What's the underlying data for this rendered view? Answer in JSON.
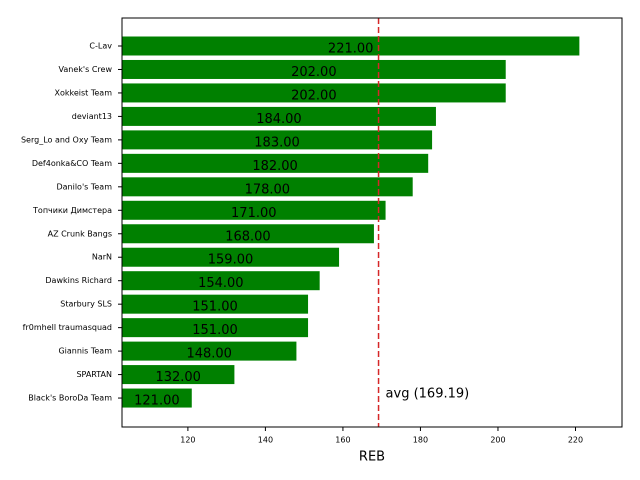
{
  "chart_data": {
    "type": "barh",
    "xlabel": "REB",
    "categories": [
      "C-Lav",
      "Vanek's Crew",
      "Xokkeist Team",
      "deviant13",
      "Serg_Lo and Oxy Team",
      "Def4onka&CO Team",
      "Danilo's Team",
      "Топчики Димстера",
      "AZ Crunk Bangs",
      "NarN",
      "Dawkins Richard",
      "Starbury SLS",
      "fr0mhell traumasquad",
      "Giannis Team",
      "SPARTAN",
      "Black's BoroDa Team"
    ],
    "values": [
      221,
      202,
      202,
      184,
      183,
      182,
      178,
      171,
      168,
      159,
      154,
      151,
      151,
      148,
      132,
      121
    ],
    "value_labels": [
      "221.00",
      "202.00",
      "202.00",
      "184.00",
      "183.00",
      "182.00",
      "178.00",
      "171.00",
      "168.00",
      "159.00",
      "154.00",
      "151.00",
      "151.00",
      "148.00",
      "132.00",
      "121.00"
    ],
    "color": "#008000",
    "xlim": [
      103,
      232
    ],
    "xticks": [
      120,
      140,
      160,
      180,
      200,
      220
    ],
    "average": {
      "value": 169.19,
      "label": "avg (169.19)",
      "color": "#d62728"
    }
  }
}
